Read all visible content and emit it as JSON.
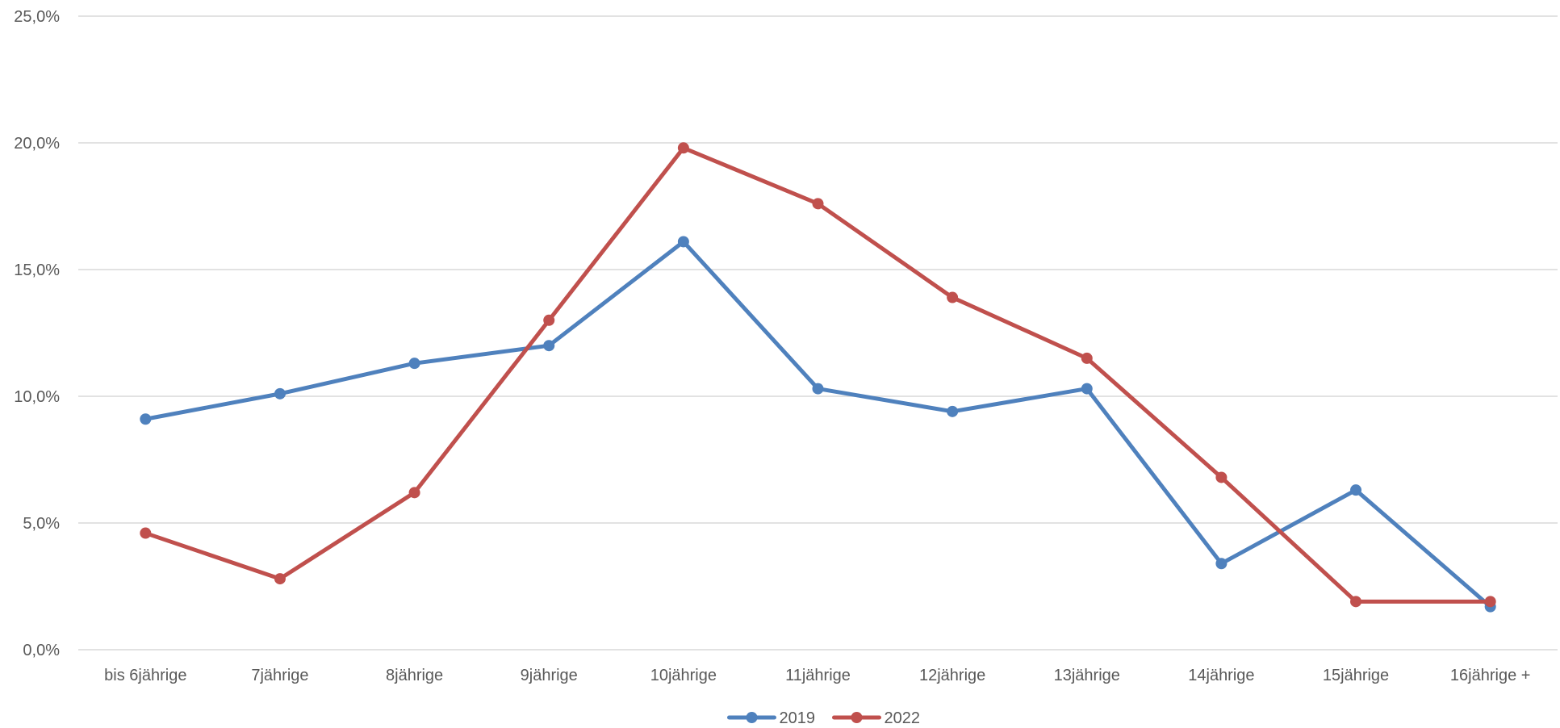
{
  "chart_data": {
    "type": "line",
    "title": "",
    "xlabel": "",
    "ylabel": "",
    "categories": [
      "bis 6jährige",
      "7jährige",
      "8jährige",
      "9jährige",
      "10jährige",
      "11jährige",
      "12jährige",
      "13jährige",
      "14jährige",
      "15jährige",
      "16jährige +"
    ],
    "y_ticks": [
      "0,0%",
      "5,0%",
      "10,0%",
      "15,0%",
      "20,0%",
      "25,0%"
    ],
    "ylim": [
      0,
      25
    ],
    "grid": true,
    "legend_position": "bottom",
    "series": [
      {
        "name": "2019",
        "color": "#4F81BD",
        "values": [
          9.1,
          10.1,
          11.3,
          12.0,
          16.1,
          10.3,
          9.4,
          10.3,
          3.4,
          6.3,
          1.7
        ]
      },
      {
        "name": "2022",
        "color": "#C0504D",
        "values": [
          4.6,
          2.8,
          6.2,
          13.0,
          19.8,
          17.6,
          13.9,
          11.5,
          6.8,
          1.9,
          1.9
        ]
      }
    ]
  }
}
